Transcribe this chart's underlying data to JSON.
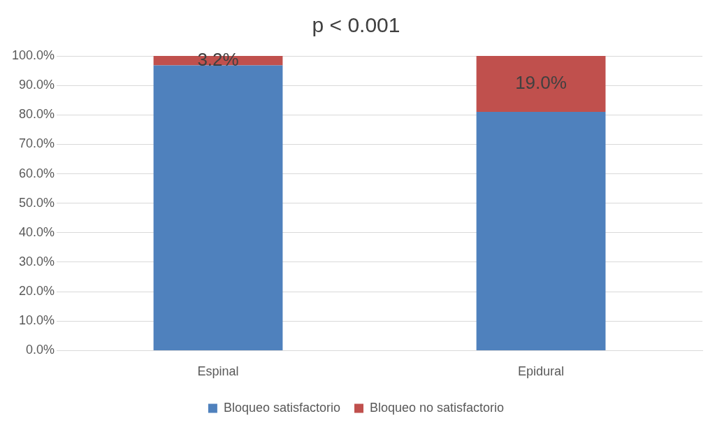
{
  "chart_data": {
    "type": "bar",
    "title": "p < 0.001",
    "stacked": true,
    "categories": [
      "Espinal",
      "Epidural"
    ],
    "series": [
      {
        "name": "Bloqueo satisfactorio",
        "color": "#4f81bd",
        "values": [
          96.8,
          81.0
        ],
        "value_labels": [
          null,
          null
        ]
      },
      {
        "name": "Bloqueo no satisfactorio",
        "color": "#c0504d",
        "values": [
          3.2,
          19.0
        ],
        "value_labels": [
          "3.2%",
          "19.0%"
        ]
      }
    ],
    "ylim": [
      0,
      100
    ],
    "yticks": [
      {
        "value": 0,
        "label": "0.0%"
      },
      {
        "value": 10,
        "label": "10.0%"
      },
      {
        "value": 20,
        "label": "20.0%"
      },
      {
        "value": 30,
        "label": "30.0%"
      },
      {
        "value": 40,
        "label": "40.0%"
      },
      {
        "value": 50,
        "label": "50.0%"
      },
      {
        "value": 60,
        "label": "60.0%"
      },
      {
        "value": 70,
        "label": "70.0%"
      },
      {
        "value": 80,
        "label": "80.0%"
      },
      {
        "value": 90,
        "label": "90.0%"
      },
      {
        "value": 100,
        "label": "100.0%"
      }
    ],
    "grid": "y",
    "legend": "bottom"
  }
}
